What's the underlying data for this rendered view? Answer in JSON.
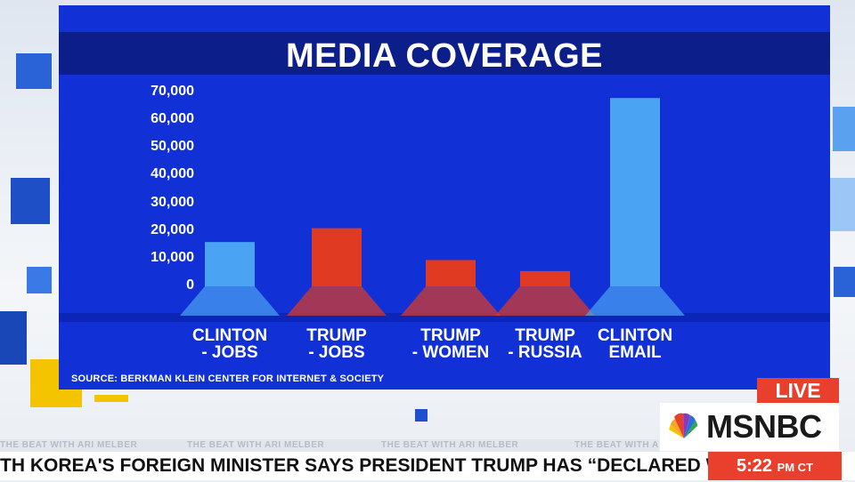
{
  "chart_data": {
    "type": "bar",
    "title": "MEDIA COVERAGE",
    "categories": [
      [
        "CLINTON",
        "- JOBS"
      ],
      [
        "TRUMP",
        "- JOBS"
      ],
      [
        "TRUMP",
        "- WOMEN"
      ],
      [
        "TRUMP",
        "- RUSSIA"
      ],
      [
        "CLINTON",
        "EMAIL"
      ]
    ],
    "values": [
      16000,
      21000,
      9500,
      5500,
      68000
    ],
    "bar_colors": [
      "#4aa3f3",
      "#e03a22",
      "#e03a22",
      "#e03a22",
      "#4aa3f3"
    ],
    "yticks": [
      "70,000",
      "60,000",
      "50,000",
      "40,000",
      "30,000",
      "20,000",
      "10,000",
      "0"
    ],
    "ylim": [
      0,
      70000
    ],
    "grid": false,
    "source": "SOURCE: BERKMAN KLEIN CENTER FOR INTERNET & SOCIETY"
  },
  "branding": {
    "live": "LIVE",
    "network": "MSNBC"
  },
  "show_strip": [
    "THE BEAT WITH ARI MELBER",
    "THE BEAT WITH ARI MELBER",
    "THE BEAT WITH ARI MELBER",
    "THE BEAT WITH ARI MELBER"
  ],
  "ticker": {
    "headline": "TH KOREA'S FOREIGN MINISTER SAYS PRESIDENT TRUMP HAS “DECLARED WA",
    "time": "5:22",
    "time_suffix": "PM CT"
  }
}
